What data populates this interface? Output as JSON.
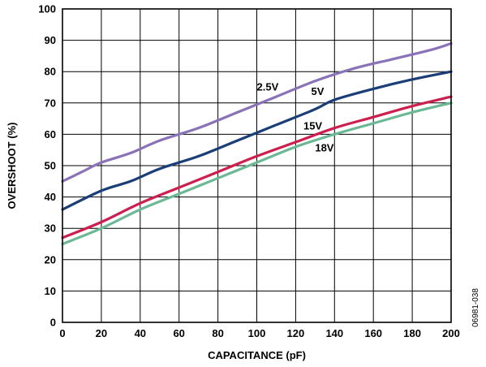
{
  "chart_data": {
    "type": "line",
    "title": "",
    "xlabel": "CAPACITANCE (pF)",
    "ylabel": "OVERSHOOT (%)",
    "xlim": [
      0,
      200
    ],
    "ylim": [
      0,
      100
    ],
    "x_ticks": [
      0,
      20,
      40,
      60,
      80,
      100,
      120,
      140,
      160,
      180,
      200
    ],
    "y_ticks": [
      0,
      10,
      20,
      30,
      40,
      50,
      60,
      70,
      80,
      90,
      100
    ],
    "grid": true,
    "figure_id": "06981-038",
    "series": [
      {
        "name": "2.5V",
        "color": "#8a72b8",
        "label_at": [
          100,
          74
        ],
        "points": [
          [
            0,
            45
          ],
          [
            10,
            48
          ],
          [
            20,
            51
          ],
          [
            35,
            54
          ],
          [
            50,
            58
          ],
          [
            70,
            62
          ],
          [
            90,
            67
          ],
          [
            110,
            72
          ],
          [
            130,
            77
          ],
          [
            150,
            81
          ],
          [
            170,
            84
          ],
          [
            190,
            87
          ],
          [
            200,
            89
          ]
        ]
      },
      {
        "name": "5V",
        "color": "#1a3e78",
        "label_at": [
          128,
          72.5
        ],
        "points": [
          [
            0,
            36
          ],
          [
            20,
            42
          ],
          [
            35,
            45
          ],
          [
            50,
            49
          ],
          [
            70,
            53
          ],
          [
            90,
            58
          ],
          [
            110,
            63
          ],
          [
            130,
            68
          ],
          [
            140,
            71
          ],
          [
            160,
            74.5
          ],
          [
            180,
            77.5
          ],
          [
            200,
            80
          ]
        ]
      },
      {
        "name": "15V",
        "color": "#cc1f4e",
        "label_at": [
          124,
          61.5
        ],
        "points": [
          [
            0,
            27
          ],
          [
            20,
            32
          ],
          [
            40,
            38
          ],
          [
            60,
            43
          ],
          [
            80,
            48
          ],
          [
            100,
            53
          ],
          [
            120,
            57.5
          ],
          [
            140,
            62
          ],
          [
            160,
            65.5
          ],
          [
            180,
            69
          ],
          [
            200,
            72
          ]
        ]
      },
      {
        "name": "18V",
        "color": "#6ab894",
        "label_at": [
          130,
          54.5
        ],
        "points": [
          [
            0,
            25
          ],
          [
            20,
            30
          ],
          [
            40,
            36
          ],
          [
            60,
            41
          ],
          [
            80,
            46
          ],
          [
            100,
            51
          ],
          [
            120,
            56
          ],
          [
            140,
            60
          ],
          [
            160,
            63.5
          ],
          [
            180,
            67
          ],
          [
            200,
            70
          ]
        ]
      }
    ]
  }
}
